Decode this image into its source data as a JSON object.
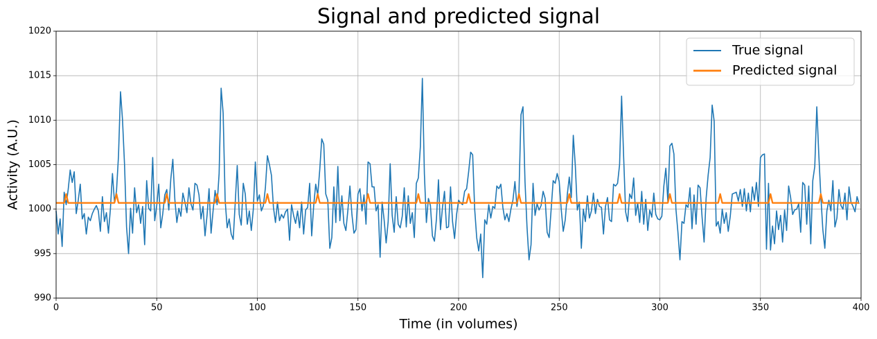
{
  "chart_data": {
    "type": "line",
    "title": "Signal and predicted signal",
    "x_label": "Time (in volumes)",
    "y_label": "Activity (A.U.)",
    "xlim": [
      0,
      400
    ],
    "xticks": [
      0,
      50,
      100,
      150,
      200,
      250,
      300,
      350,
      400
    ],
    "ylim": [
      990,
      1020
    ],
    "yticks": [
      990,
      995,
      1000,
      1005,
      1010,
      1015,
      1020
    ],
    "grid": true,
    "legend": "upper right",
    "x": [
      0,
      1,
      2,
      3,
      4,
      5,
      6,
      7,
      8,
      9,
      10,
      11,
      12,
      13,
      14,
      15,
      16,
      17,
      18,
      19,
      20,
      21,
      22,
      23,
      24,
      25,
      26,
      27,
      28,
      29,
      30,
      31,
      32,
      33,
      34,
      35,
      36,
      37,
      38,
      39,
      40,
      41,
      42,
      43,
      44,
      45,
      46,
      47,
      48,
      49,
      50,
      51,
      52,
      53,
      54,
      55,
      56,
      57,
      58,
      59,
      60,
      61,
      62,
      63,
      64,
      65,
      66,
      67,
      68,
      69,
      70,
      71,
      72,
      73,
      74,
      75,
      76,
      77,
      78,
      79,
      80,
      81,
      82,
      83,
      84,
      85,
      86,
      87,
      88,
      89,
      90,
      91,
      92,
      93,
      94,
      95,
      96,
      97,
      98,
      99,
      100,
      101,
      102,
      103,
      104,
      105,
      106,
      107,
      108,
      109,
      110,
      111,
      112,
      113,
      114,
      115,
      116,
      117,
      118,
      119,
      120,
      121,
      122,
      123,
      124,
      125,
      126,
      127,
      128,
      129,
      130,
      131,
      132,
      133,
      134,
      135,
      136,
      137,
      138,
      139,
      140,
      141,
      142,
      143,
      144,
      145,
      146,
      147,
      148,
      149,
      150,
      151,
      152,
      153,
      154,
      155,
      156,
      157,
      158,
      159,
      160,
      161,
      162,
      163,
      164,
      165,
      166,
      167,
      168,
      169,
      170,
      171,
      172,
      173,
      174,
      175,
      176,
      177,
      178,
      179,
      180,
      181,
      182,
      183,
      184,
      185,
      186,
      187,
      188,
      189,
      190,
      191,
      192,
      193,
      194,
      195,
      196,
      197,
      198,
      199,
      200,
      201,
      202,
      203,
      204,
      205,
      206,
      207,
      208,
      209,
      210,
      211,
      212,
      213,
      214,
      215,
      216,
      217,
      218,
      219,
      220,
      221,
      222,
      223,
      224,
      225,
      226,
      227,
      228,
      229,
      230,
      231,
      232,
      233,
      234,
      235,
      236,
      237,
      238,
      239,
      240,
      241,
      242,
      243,
      244,
      245,
      246,
      247,
      248,
      249,
      250,
      251,
      252,
      253,
      254,
      255,
      256,
      257,
      258,
      259,
      260,
      261,
      262,
      263,
      264,
      265,
      266,
      267,
      268,
      269,
      270,
      271,
      272,
      273,
      274,
      275,
      276,
      277,
      278,
      279,
      280,
      281,
      282,
      283,
      284,
      285,
      286,
      287,
      288,
      289,
      290,
      291,
      292,
      293,
      294,
      295,
      296,
      297,
      298,
      299,
      300,
      301,
      302,
      303,
      304,
      305,
      306,
      307,
      308,
      309,
      310,
      311,
      312,
      313,
      314,
      315,
      316,
      317,
      318,
      319,
      320,
      321,
      322,
      323,
      324,
      325,
      326,
      327,
      328,
      329,
      330,
      331,
      332,
      333,
      334,
      335,
      336,
      337,
      338,
      339,
      340,
      341,
      342,
      343,
      344,
      345,
      346,
      347,
      348,
      349,
      350,
      351,
      352,
      353,
      354,
      355,
      356,
      357,
      358,
      359,
      360,
      361,
      362,
      363,
      364,
      365,
      366,
      367,
      368,
      369,
      370,
      371,
      372,
      373,
      374,
      375,
      376,
      377,
      378,
      379,
      380,
      381,
      382,
      383,
      384,
      385,
      386,
      387,
      388,
      389,
      390,
      391,
      392,
      393,
      394,
      395,
      396,
      397,
      398,
      399
    ],
    "series": [
      {
        "name": "True signal",
        "color": "#1f77b4",
        "values": [
          999.8,
          997.2,
          998.9,
          995.8,
          1001.9,
          1000.5,
          1002.2,
          1004.4,
          1003.0,
          1004.2,
          999.5,
          1001.0,
          1002.8,
          998.9,
          999.5,
          997.2,
          999.1,
          998.7,
          999.5,
          1000.0,
          1000.4,
          999.8,
          997.5,
          1001.4,
          998.6,
          999.6,
          997.3,
          1000.1,
          1004.0,
          1000.8,
          1002.0,
          1006.0,
          1013.2,
          1010.0,
          1005.0,
          998.0,
          995.0,
          1000.1,
          997.3,
          1002.4,
          999.6,
          1000.5,
          998.4,
          1000.3,
          996.0,
          1003.2,
          1000.1,
          999.8,
          1005.8,
          998.7,
          1000.4,
          1002.8,
          997.9,
          999.5,
          1001.6,
          1002.2,
          999.9,
          1003.4,
          1005.6,
          1001.1,
          998.5,
          1000.1,
          999.2,
          1001.8,
          1000.8,
          999.6,
          1002.4,
          1000.6,
          999.9,
          1002.9,
          1002.7,
          1001.6,
          998.9,
          1000.3,
          997.0,
          999.3,
          1002.3,
          997.3,
          999.8,
          1002.1,
          1000.5,
          1004.0,
          1013.6,
          1010.8,
          1001.0,
          997.9,
          998.9,
          997.2,
          996.6,
          1000.7,
          1004.9,
          999.4,
          998.2,
          1002.9,
          1001.7,
          998.3,
          999.8,
          997.6,
          1000.0,
          1005.3,
          1000.9,
          1001.6,
          999.8,
          1000.4,
          1002.4,
          1006.0,
          1005.0,
          1003.8,
          1000.2,
          998.5,
          1000.8,
          998.7,
          999.4,
          999.0,
          999.7,
          1000.0,
          996.5,
          1000.5,
          999.3,
          998.4,
          999.8,
          997.9,
          1000.8,
          997.2,
          999.9,
          1000.2,
          1002.9,
          997.0,
          1000.4,
          1002.8,
          1001.6,
          1004.4,
          1007.9,
          1007.3,
          1001.7,
          1001.0,
          995.6,
          996.8,
          1002.5,
          998.5,
          1004.8,
          998.7,
          1001.5,
          998.4,
          997.6,
          999.9,
          1002.6,
          999.4,
          997.3,
          997.7,
          1001.7,
          1002.3,
          999.8,
          1001.6,
          998.3,
          1005.3,
          1005.1,
          1002.5,
          1002.5,
          999.8,
          1000.5,
          994.6,
          1000.8,
          998.8,
          996.2,
          998.6,
          1005.1,
          999.3,
          997.4,
          1001.4,
          998.3,
          997.9,
          999.2,
          1002.4,
          998.0,
          1001.5,
          998.4,
          999.6,
          996.8,
          1002.9,
          1003.5,
          1007.0,
          1014.7,
          1004.0,
          998.5,
          1001.2,
          1000.4,
          997.0,
          996.4,
          998.9,
          1003.3,
          997.7,
          1000.2,
          1002.0,
          997.9,
          998.0,
          1002.5,
          998.6,
          996.7,
          999.4,
          1001.0,
          1000.7,
          1000.5,
          1002.0,
          1002.3,
          1004.2,
          1006.4,
          1006.1,
          1000.0,
          996.8,
          995.3,
          997.2,
          992.3,
          998.8,
          998.3,
          1000.5,
          999.0,
          1000.3,
          1000.1,
          1002.6,
          1002.3,
          1002.8,
          1000.2,
          998.8,
          999.5,
          998.6,
          1000.0,
          1001.0,
          1003.1,
          1000.3,
          1001.8,
          1010.6,
          1011.5,
          1003.1,
          998.0,
          994.3,
          996.0,
          1002.9,
          999.3,
          1000.6,
          999.9,
          1000.4,
          1002.0,
          1001.2,
          997.4,
          996.8,
          1000.0,
          1003.2,
          1002.9,
          1004.0,
          1003.1,
          1000.0,
          997.5,
          998.8,
          1001.6,
          1003.6,
          1001.3,
          1008.3,
          1004.9,
          999.9,
          1000.8,
          995.6,
          1000.0,
          998.6,
          1001.5,
          999.0,
          999.8,
          1001.8,
          999.5,
          1001.1,
          1000.3,
          1000.2,
          997.2,
          1000.3,
          1001.3,
          998.8,
          998.6,
          1002.8,
          1002.6,
          1002.9,
          1005.0,
          1012.7,
          1006.0,
          999.7,
          998.6,
          1001.7,
          1001.2,
          1003.5,
          999.3,
          1000.7,
          998.5,
          1002.0,
          998.3,
          1001.1,
          997.6,
          999.9,
          999.1,
          1001.8,
          999.4,
          998.9,
          998.8,
          999.2,
          1002.6,
          1004.6,
          1000.8,
          1007.1,
          1007.4,
          1006.2,
          1000.0,
          997.4,
          994.3,
          998.6,
          998.4,
          1000.5,
          1000.2,
          1002.4,
          997.8,
          1001.6,
          998.3,
          1002.7,
          1002.4,
          999.1,
          996.3,
          1001.2,
          1003.8,
          1005.8,
          1011.7,
          1009.9,
          998.1,
          998.6,
          997.3,
          1000.0,
          998.4,
          999.6,
          997.5,
          999.2,
          1001.7,
          1001.8,
          1001.9,
          1000.9,
          1002.2,
          1000.3,
          1002.3,
          999.8,
          1001.8,
          999.7,
          1002.5,
          1001.0,
          1003.0,
          1000.3,
          1005.8,
          1006.1,
          1006.2,
          995.5,
          1002.9,
          995.4,
          998.1,
          996.1,
          999.8,
          997.7,
          999.3,
          996.3,
          999.9,
          997.6,
          1002.6,
          1001.3,
          999.4,
          999.9,
          1000.0,
          1000.6,
          997.4,
          1003.0,
          1002.7,
          998.3,
          1002.6,
          996.1,
          1003.2,
          1004.8,
          1011.5,
          1006.1,
          1001.5,
          997.7,
          995.6,
          999.8,
          1001.0,
          999.8,
          1003.2,
          998.0,
          999.0,
          1002.2,
          1000.4,
          1000.0,
          1001.8,
          998.8,
          1002.5,
          1000.8,
          1000.3,
          999.7,
          1001.4,
          1000.6
        ]
      },
      {
        "name": "Predicted signal",
        "color": "#ff7f0e",
        "values": [
          1000.7,
          1000.7,
          1000.7,
          1000.7,
          1000.7,
          1001.7,
          1000.7,
          1000.7,
          1000.7,
          1000.7,
          1000.7,
          1000.7,
          1000.7,
          1000.7,
          1000.7,
          1000.7,
          1000.7,
          1000.7,
          1000.7,
          1000.7,
          1000.7,
          1000.7,
          1000.7,
          1000.7,
          1000.7,
          1000.7,
          1000.7,
          1000.7,
          1000.7,
          1000.7,
          1001.7,
          1000.7,
          1000.7,
          1000.7,
          1000.7,
          1000.7,
          1000.7,
          1000.7,
          1000.7,
          1000.7,
          1000.7,
          1000.7,
          1000.7,
          1000.7,
          1000.7,
          1000.7,
          1000.7,
          1000.7,
          1000.7,
          1000.7,
          1000.7,
          1000.7,
          1000.7,
          1000.7,
          1000.7,
          1001.7,
          1000.7,
          1000.7,
          1000.7,
          1000.7,
          1000.7,
          1000.7,
          1000.7,
          1000.7,
          1000.7,
          1000.7,
          1000.7,
          1000.7,
          1000.7,
          1000.7,
          1000.7,
          1000.7,
          1000.7,
          1000.7,
          1000.7,
          1000.7,
          1000.7,
          1000.7,
          1000.7,
          1000.7,
          1001.7,
          1000.7,
          1000.7,
          1000.7,
          1000.7,
          1000.7,
          1000.7,
          1000.7,
          1000.7,
          1000.7,
          1000.7,
          1000.7,
          1000.7,
          1000.7,
          1000.7,
          1000.7,
          1000.7,
          1000.7,
          1000.7,
          1000.7,
          1000.7,
          1000.7,
          1000.7,
          1000.7,
          1000.7,
          1001.7,
          1000.7,
          1000.7,
          1000.7,
          1000.7,
          1000.7,
          1000.7,
          1000.7,
          1000.7,
          1000.7,
          1000.7,
          1000.7,
          1000.7,
          1000.7,
          1000.7,
          1000.7,
          1000.7,
          1000.7,
          1000.7,
          1000.7,
          1000.7,
          1000.7,
          1000.7,
          1000.7,
          1000.7,
          1001.7,
          1000.7,
          1000.7,
          1000.7,
          1000.7,
          1000.7,
          1000.7,
          1000.7,
          1000.7,
          1000.7,
          1000.7,
          1000.7,
          1000.7,
          1000.7,
          1000.7,
          1000.7,
          1000.7,
          1000.7,
          1000.7,
          1000.7,
          1000.7,
          1000.7,
          1000.7,
          1000.7,
          1000.7,
          1001.7,
          1000.7,
          1000.7,
          1000.7,
          1000.7,
          1000.7,
          1000.7,
          1000.7,
          1000.7,
          1000.7,
          1000.7,
          1000.7,
          1000.7,
          1000.7,
          1000.7,
          1000.7,
          1000.7,
          1000.7,
          1000.7,
          1000.7,
          1000.7,
          1000.7,
          1000.7,
          1000.7,
          1000.7,
          1001.7,
          1000.7,
          1000.7,
          1000.7,
          1000.7,
          1000.7,
          1000.7,
          1000.7,
          1000.7,
          1000.7,
          1000.7,
          1000.7,
          1000.7,
          1000.7,
          1000.7,
          1000.7,
          1000.7,
          1000.7,
          1000.7,
          1000.7,
          1000.7,
          1000.7,
          1000.7,
          1000.7,
          1000.7,
          1001.7,
          1000.7,
          1000.7,
          1000.7,
          1000.7,
          1000.7,
          1000.7,
          1000.7,
          1000.7,
          1000.7,
          1000.7,
          1000.7,
          1000.7,
          1000.7,
          1000.7,
          1000.7,
          1000.7,
          1000.7,
          1000.7,
          1000.7,
          1000.7,
          1000.7,
          1000.7,
          1000.7,
          1000.7,
          1001.7,
          1000.7,
          1000.7,
          1000.7,
          1000.7,
          1000.7,
          1000.7,
          1000.7,
          1000.7,
          1000.7,
          1000.7,
          1000.7,
          1000.7,
          1000.7,
          1000.7,
          1000.7,
          1000.7,
          1000.7,
          1000.7,
          1000.7,
          1000.7,
          1000.7,
          1000.7,
          1000.7,
          1000.7,
          1001.7,
          1000.7,
          1000.7,
          1000.7,
          1000.7,
          1000.7,
          1000.7,
          1000.7,
          1000.7,
          1000.7,
          1000.7,
          1000.7,
          1000.7,
          1000.7,
          1000.7,
          1000.7,
          1000.7,
          1000.7,
          1000.7,
          1000.7,
          1000.7,
          1000.7,
          1000.7,
          1000.7,
          1000.7,
          1001.7,
          1000.7,
          1000.7,
          1000.7,
          1000.7,
          1000.7,
          1000.7,
          1000.7,
          1000.7,
          1000.7,
          1000.7,
          1000.7,
          1000.7,
          1000.7,
          1000.7,
          1000.7,
          1000.7,
          1000.7,
          1000.7,
          1000.7,
          1000.7,
          1000.7,
          1000.7,
          1000.7,
          1000.7,
          1001.7,
          1000.7,
          1000.7,
          1000.7,
          1000.7,
          1000.7,
          1000.7,
          1000.7,
          1000.7,
          1000.7,
          1000.7,
          1000.7,
          1000.7,
          1000.7,
          1000.7,
          1000.7,
          1000.7,
          1000.7,
          1000.7,
          1000.7,
          1000.7,
          1000.7,
          1000.7,
          1000.7,
          1000.7,
          1001.7,
          1000.7,
          1000.7,
          1000.7,
          1000.7,
          1000.7,
          1000.7,
          1000.7,
          1000.7,
          1000.7,
          1000.7,
          1000.7,
          1000.7,
          1000.7,
          1000.7,
          1000.7,
          1000.7,
          1000.7,
          1000.7,
          1000.7,
          1000.7,
          1000.7,
          1000.7,
          1000.7,
          1000.7,
          1001.7,
          1000.7,
          1000.7,
          1000.7,
          1000.7,
          1000.7,
          1000.7,
          1000.7,
          1000.7,
          1000.7,
          1000.7,
          1000.7,
          1000.7,
          1000.7,
          1000.7,
          1000.7,
          1000.7,
          1000.7,
          1000.7,
          1000.7,
          1000.7,
          1000.7,
          1000.7,
          1000.7,
          1000.7,
          1001.7,
          1000.7,
          1000.7,
          1000.7,
          1000.7,
          1000.7,
          1000.7,
          1000.7,
          1000.7,
          1000.7,
          1000.7,
          1000.7,
          1000.7,
          1000.7,
          1000.7,
          1000.7,
          1000.7,
          1000.7,
          1000.7,
          1000.7
        ]
      }
    ]
  }
}
